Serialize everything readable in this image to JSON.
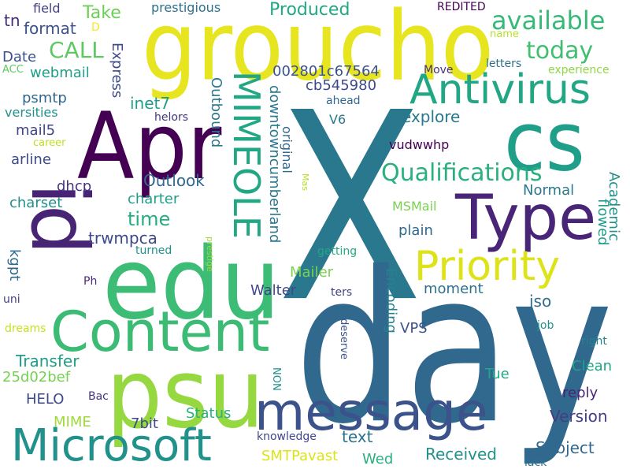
{
  "words": [
    {
      "text": "X",
      "color": "#2a788e"
    },
    {
      "text": "day",
      "color": "#31688e"
    },
    {
      "text": "groucho",
      "color": "#e6e51f"
    },
    {
      "text": "Apr",
      "color": "#440154"
    },
    {
      "text": "edu",
      "color": "#3cbc75"
    },
    {
      "text": "cs",
      "color": "#1f9e89"
    },
    {
      "text": "psu",
      "color": "#95d840"
    },
    {
      "text": "id",
      "color": "#482475"
    },
    {
      "text": "Type",
      "color": "#482576"
    },
    {
      "text": "Content",
      "color": "#3cbb75"
    },
    {
      "text": "message",
      "color": "#3b528b"
    },
    {
      "text": "Microsoft",
      "color": "#21918c"
    },
    {
      "text": "Antivirus",
      "color": "#22a785"
    },
    {
      "text": "Priority",
      "color": "#dde318"
    },
    {
      "text": "MIMEOLE",
      "color": "#22a785"
    },
    {
      "text": "available",
      "color": "#38b977"
    },
    {
      "text": "Qualifications",
      "color": "#2ab07f"
    },
    {
      "text": "today",
      "color": "#42be71"
    },
    {
      "text": "CALL",
      "color": "#5ec962"
    },
    {
      "text": "Take",
      "color": "#6ece58"
    },
    {
      "text": "format",
      "color": "#3b528b"
    },
    {
      "text": "field",
      "color": "#433e85"
    },
    {
      "text": "prestigious",
      "color": "#2c728e"
    },
    {
      "text": "Produced",
      "color": "#22a884"
    },
    {
      "text": "REDITED",
      "color": "#440154"
    },
    {
      "text": "tn",
      "color": "#472c7a"
    },
    {
      "text": "D",
      "color": "#fde725"
    },
    {
      "text": "name",
      "color": "#b8de29"
    },
    {
      "text": "Date",
      "color": "#3b528b"
    },
    {
      "text": "Express",
      "color": "#3e4989"
    },
    {
      "text": "ACC",
      "color": "#5ec962"
    },
    {
      "text": "webmail",
      "color": "#1f9e89"
    },
    {
      "text": "letters",
      "color": "#2c728e"
    },
    {
      "text": "Move",
      "color": "#46327e"
    },
    {
      "text": "experience",
      "color": "#8fd744"
    },
    {
      "text": "psmtp",
      "color": "#31688e"
    },
    {
      "text": "inet7",
      "color": "#1f9e89"
    },
    {
      "text": "Outbound",
      "color": "#2a788e"
    },
    {
      "text": "002801c67564",
      "color": "#3b528b"
    },
    {
      "text": "downtowncumberland",
      "color": "#2a788e"
    },
    {
      "text": "cb545980",
      "color": "#3e4989"
    },
    {
      "text": "ahead",
      "color": "#31688e"
    },
    {
      "text": "versities",
      "color": "#21918c"
    },
    {
      "text": "mail5",
      "color": "#414487"
    },
    {
      "text": "helors",
      "color": "#453581"
    },
    {
      "text": "career",
      "color": "#c2df23"
    },
    {
      "text": "V6",
      "color": "#2a788e"
    },
    {
      "text": "explore",
      "color": "#2a788e"
    },
    {
      "text": "original",
      "color": "#31688e"
    },
    {
      "text": "vudwwhp",
      "color": "#440154"
    },
    {
      "text": "arline",
      "color": "#3e4989"
    },
    {
      "text": "Outlook",
      "color": "#31688e"
    },
    {
      "text": "Academic",
      "color": "#21918c"
    },
    {
      "text": "dhcp",
      "color": "#46337f"
    },
    {
      "text": "charter",
      "color": "#1f9e89"
    },
    {
      "text": "Mas",
      "color": "#b5de2b"
    },
    {
      "text": "Normal",
      "color": "#2a788e"
    },
    {
      "text": "flowed",
      "color": "#1f9e89"
    },
    {
      "text": "charset",
      "color": "#21918c"
    },
    {
      "text": "time",
      "color": "#26ad81"
    },
    {
      "text": "MSMail",
      "color": "#7ad151"
    },
    {
      "text": "trwmpca",
      "color": "#3e4989"
    },
    {
      "text": "plain",
      "color": "#31688e"
    },
    {
      "text": "kgpt",
      "color": "#31688e"
    },
    {
      "text": "prestige",
      "color": "#a2da37"
    },
    {
      "text": "turned",
      "color": "#21918c"
    },
    {
      "text": "getting",
      "color": "#22a884"
    },
    {
      "text": "Ph",
      "color": "#482878"
    },
    {
      "text": "Mailer",
      "color": "#7ad151"
    },
    {
      "text": "Walter",
      "color": "#404688"
    },
    {
      "text": "moment",
      "color": "#2c728e"
    },
    {
      "text": "Encoding",
      "color": "#26828e"
    },
    {
      "text": "uni",
      "color": "#433e85"
    },
    {
      "text": "ters",
      "color": "#414487"
    },
    {
      "text": "iso",
      "color": "#2f6c8e"
    },
    {
      "text": "dreams",
      "color": "#c8e020"
    },
    {
      "text": "VPS",
      "color": "#3b528b"
    },
    {
      "text": "job",
      "color": "#20928c"
    },
    {
      "text": "deserve",
      "color": "#3b528b"
    },
    {
      "text": "right",
      "color": "#26828e"
    },
    {
      "text": "Transfer",
      "color": "#1f9e89"
    },
    {
      "text": "Clean",
      "color": "#20a386"
    },
    {
      "text": "25d02bef",
      "color": "#75d054"
    },
    {
      "text": "Tue",
      "color": "#22a884"
    },
    {
      "text": "reply",
      "color": "#482576"
    },
    {
      "text": "NON",
      "color": "#21918c"
    },
    {
      "text": "HELO",
      "color": "#3e4989"
    },
    {
      "text": "Bac",
      "color": "#46337f"
    },
    {
      "text": "Status",
      "color": "#2ab07f"
    },
    {
      "text": "Version",
      "color": "#433e85"
    },
    {
      "text": "MIME",
      "color": "#9fda3a"
    },
    {
      "text": "7bit",
      "color": "#3e4989"
    },
    {
      "text": "text",
      "color": "#2c728e"
    },
    {
      "text": "knowledge",
      "color": "#404688"
    },
    {
      "text": "Subject",
      "color": "#31688e"
    },
    {
      "text": "SMTPavast",
      "color": "#dde318"
    },
    {
      "text": "Received",
      "color": "#21918c"
    },
    {
      "text": "Wed",
      "color": "#2ab07f"
    },
    {
      "text": "lack",
      "color": "#2c728e"
    }
  ]
}
